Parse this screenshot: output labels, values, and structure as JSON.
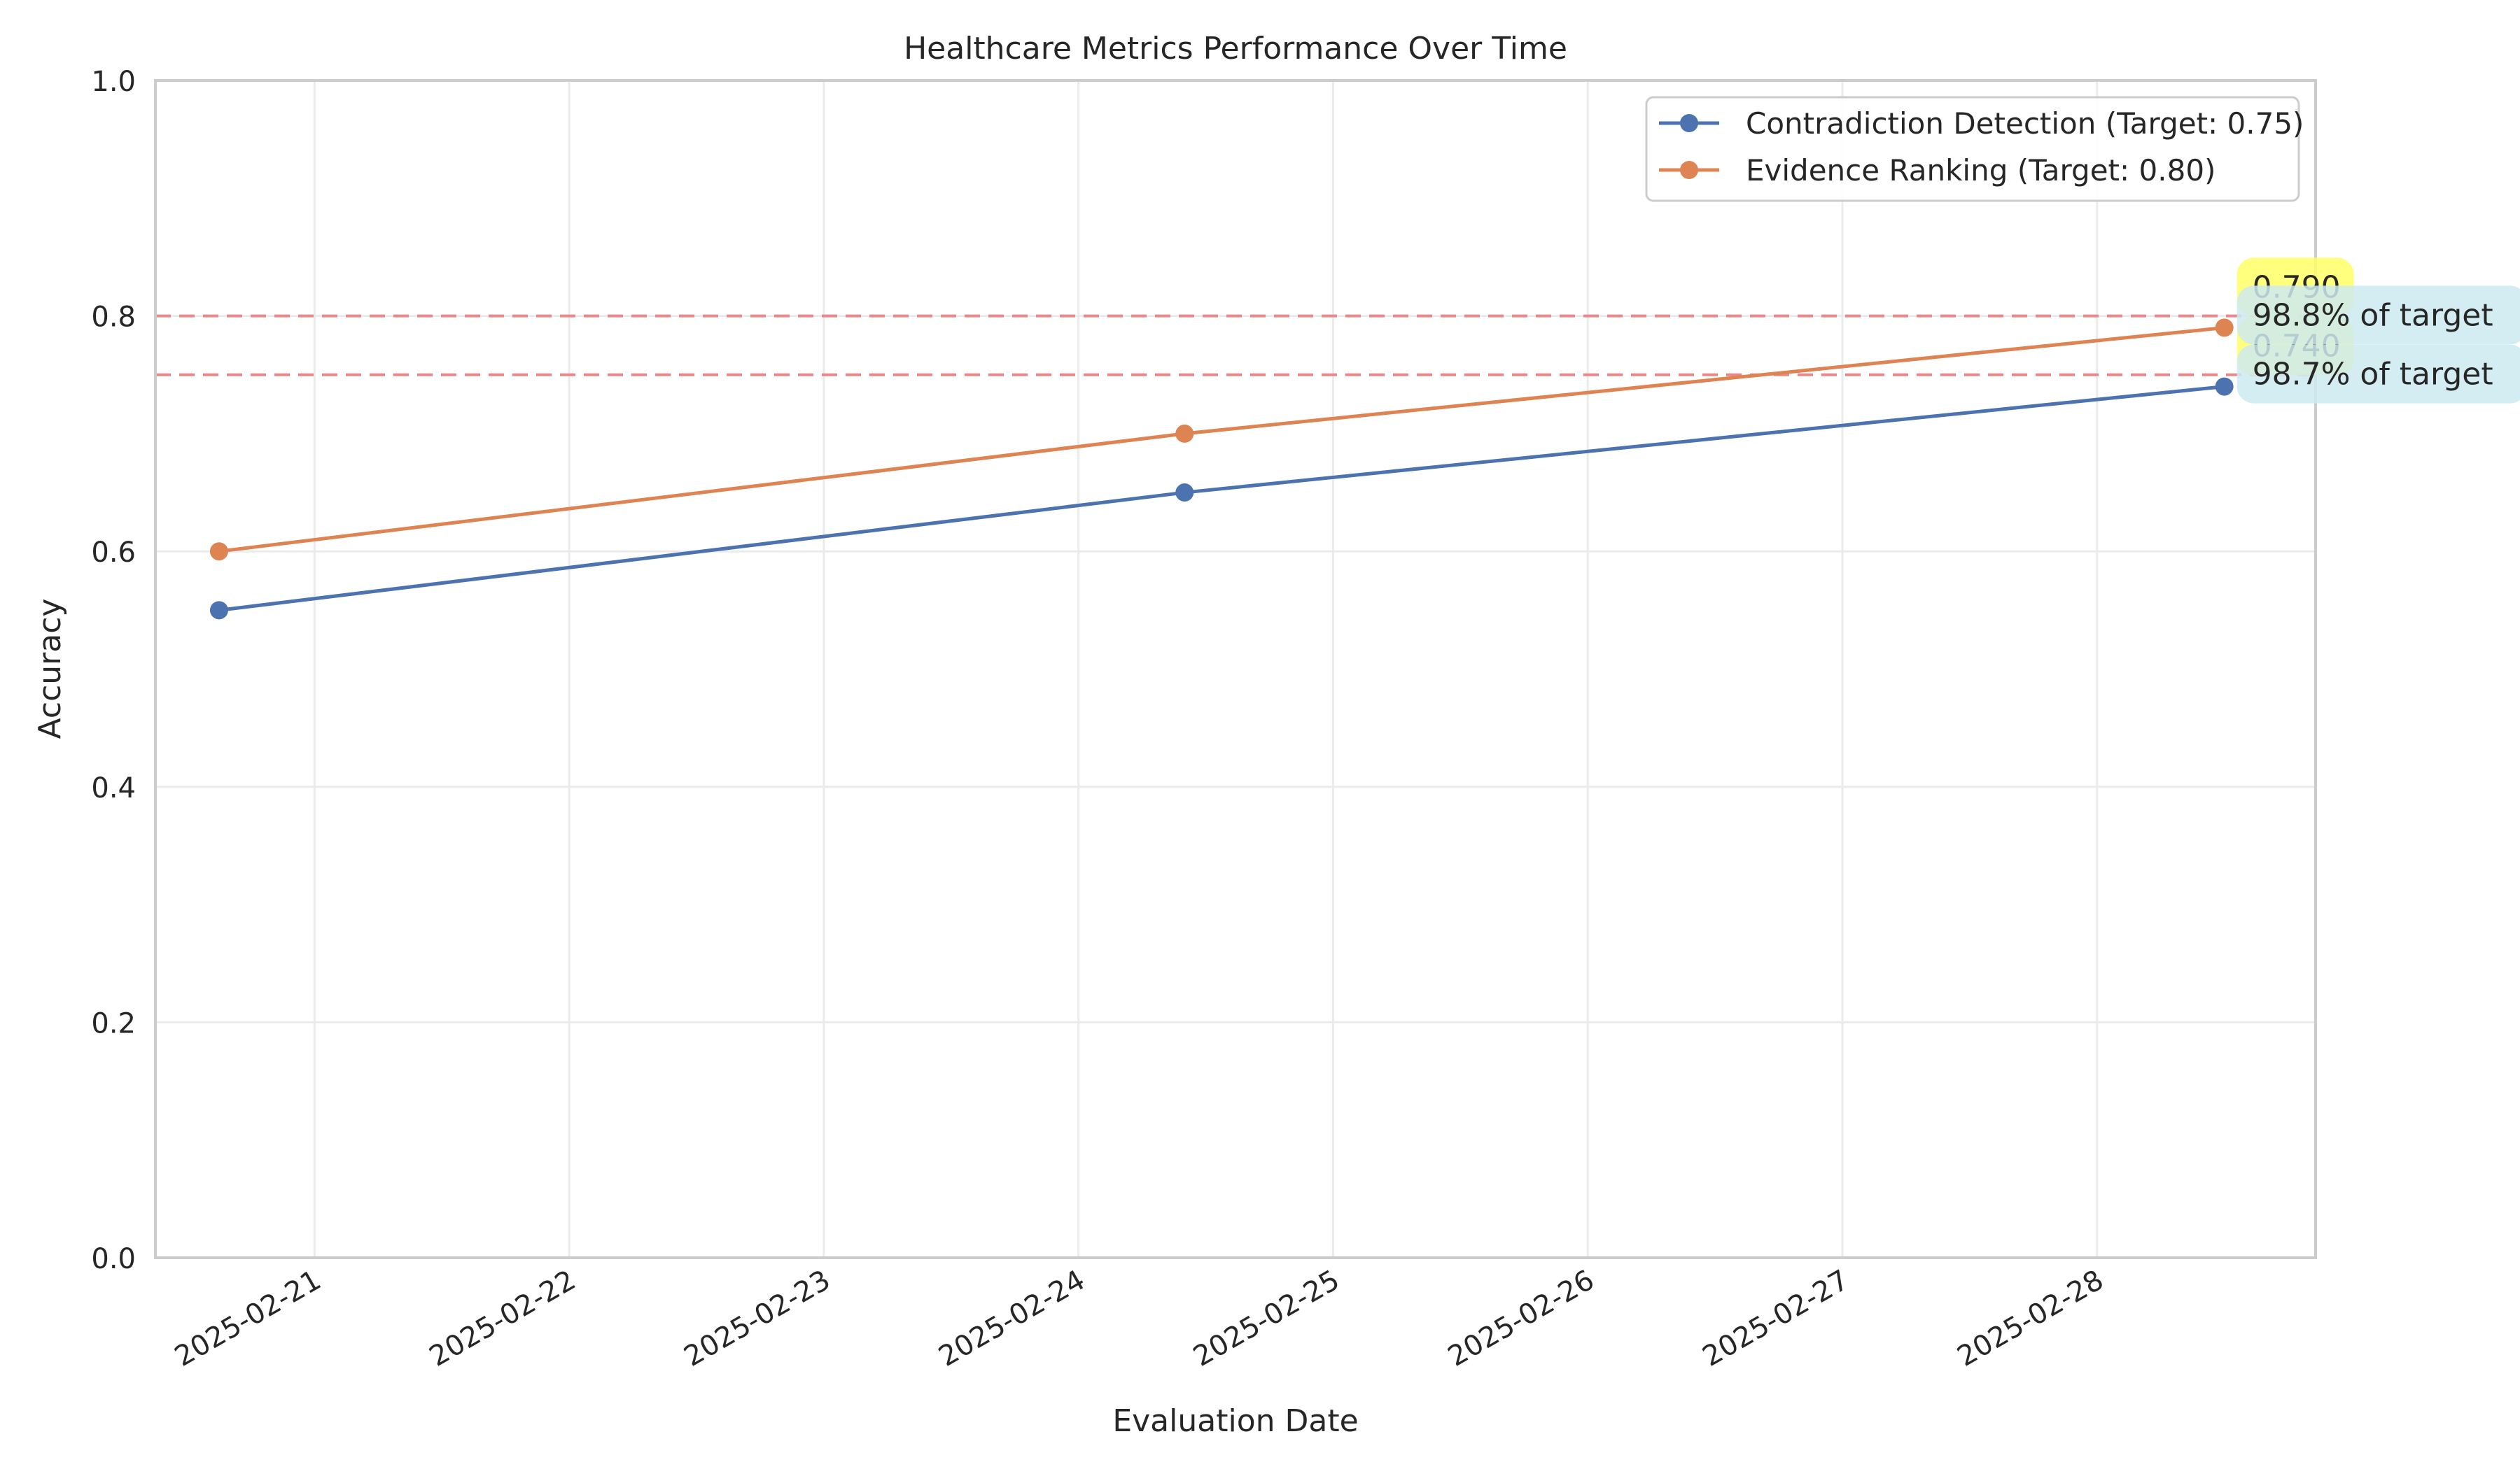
{
  "chart_data": {
    "type": "line",
    "title": "Healthcare Metrics Performance Over Time",
    "xlabel": "Evaluation Date",
    "ylabel": "Accuracy",
    "ylim": [
      0,
      1
    ],
    "yticks": [
      0.0,
      0.2,
      0.4,
      0.6,
      0.8,
      1.0
    ],
    "ytick_labels": [
      "0.0",
      "0.2",
      "0.4",
      "0.6",
      "0.8",
      "1.0"
    ],
    "xlim": [
      "2025-02-20 09:00",
      "2025-02-28 20:36"
    ],
    "xticks": [
      "2025-02-21",
      "2025-02-22",
      "2025-02-23",
      "2025-02-24",
      "2025-02-25",
      "2025-02-26",
      "2025-02-27",
      "2025-02-28"
    ],
    "grid": true,
    "legend_position": "top-right",
    "series": [
      {
        "name": "Contradiction Detection (Target: 0.75)",
        "color": "#4c72b0",
        "x": [
          "2025-02-20 15:00",
          "2025-02-24 10:00",
          "2025-02-28 12:00"
        ],
        "y": [
          0.55,
          0.65,
          0.74
        ],
        "target": 0.75
      },
      {
        "name": "Evidence Ranking (Target: 0.80)",
        "color": "#dd8452",
        "x": [
          "2025-02-20 15:00",
          "2025-02-24 10:00",
          "2025-02-28 12:00"
        ],
        "y": [
          0.6,
          0.7,
          0.79
        ],
        "target": 0.8
      }
    ],
    "target_line_color": "#e8888a",
    "annotations": [
      {
        "text": "0.790",
        "x": "2025-02-28 12:00",
        "y": 0.79,
        "style": "value",
        "bg": "#ffff66"
      },
      {
        "text": "0.740",
        "x": "2025-02-28 12:00",
        "y": 0.74,
        "style": "value",
        "bg": "#ffff66"
      },
      {
        "text": "98.8% of target",
        "x": "2025-02-28 12:00",
        "y": 0.79,
        "style": "percent",
        "bg": "#cdeaf0"
      },
      {
        "text": "98.7% of target",
        "x": "2025-02-28 12:00",
        "y": 0.74,
        "style": "percent",
        "bg": "#cdeaf0"
      }
    ]
  }
}
